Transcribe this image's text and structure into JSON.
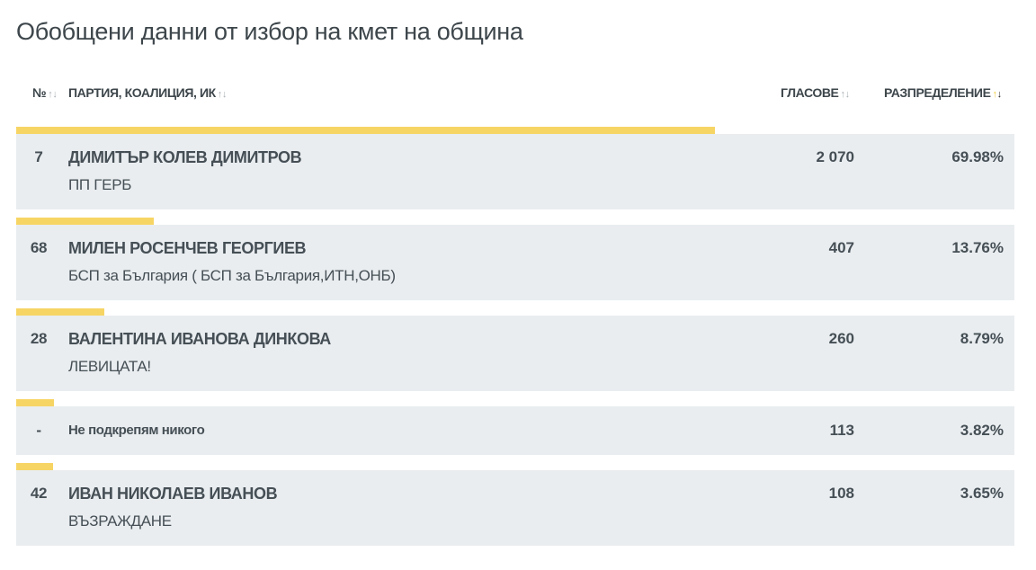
{
  "title": "Обобщени данни от избор на кмет на община",
  "headers": {
    "number": "№",
    "party": "ПАРТИЯ, КОАЛИЦИЯ, ИК",
    "votes": "ГЛАСОВЕ",
    "distribution": "РАЗПРЕДЕЛЕНИЕ"
  },
  "sort_icon": "sort-arrows-icon",
  "accent": "#f7d565",
  "rows": [
    {
      "number": "7",
      "name": "ДИМИТЪР КОЛЕВ ДИМИТРОВ",
      "party": "ПП ГЕРБ",
      "votes": "2 070",
      "pct": "69.98%",
      "share": 69.98
    },
    {
      "number": "68",
      "name": "МИЛЕН РОСЕНЧЕВ ГЕОРГИЕВ",
      "party": "БСП за България ( БСП за България,ИТН,ОНБ)",
      "votes": "407",
      "pct": "13.76%",
      "share": 13.76
    },
    {
      "number": "28",
      "name": "ВАЛЕНТИНА ИВАНОВА ДИНКОВА",
      "party": "ЛЕВИЦАТА!",
      "votes": "260",
      "pct": "8.79%",
      "share": 8.79
    },
    {
      "number": "-",
      "name": "Не подкрепям никого",
      "votes": "113",
      "pct": "3.82%",
      "share": 3.82
    },
    {
      "number": "42",
      "name": "ИВАН НИКОЛАЕВ ИВАНОВ",
      "party": "ВЪЗРАЖДАНЕ",
      "votes": "108",
      "pct": "3.65%",
      "share": 3.65
    }
  ]
}
